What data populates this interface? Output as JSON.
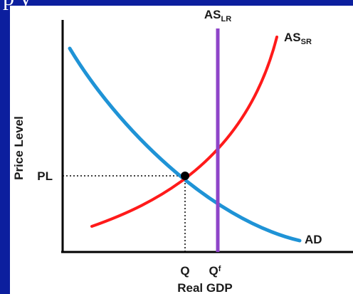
{
  "header": {
    "partial_text": "p                                         y"
  },
  "chart_data": {
    "type": "line",
    "title": "",
    "xlabel": "Real GDP",
    "ylabel": "Price Level",
    "grid": false,
    "x_ticks": [
      {
        "label": "Q",
        "sub": ""
      },
      {
        "label": "Q",
        "sub": "f"
      }
    ],
    "y_ticks": [
      {
        "label": "PL"
      }
    ],
    "series": [
      {
        "name": "AS",
        "sub": "LR",
        "color": "#8e44c8",
        "kind": "vertical at Qf"
      },
      {
        "name": "AS",
        "sub": "SR",
        "color": "#ff1a1a",
        "kind": "upward sloping"
      },
      {
        "name": "AD",
        "sub": "",
        "color": "#1f93d6",
        "kind": "downward sloping"
      }
    ],
    "equilibrium": {
      "color": "#000000",
      "x_label": "Q",
      "y_label": "PL"
    }
  }
}
